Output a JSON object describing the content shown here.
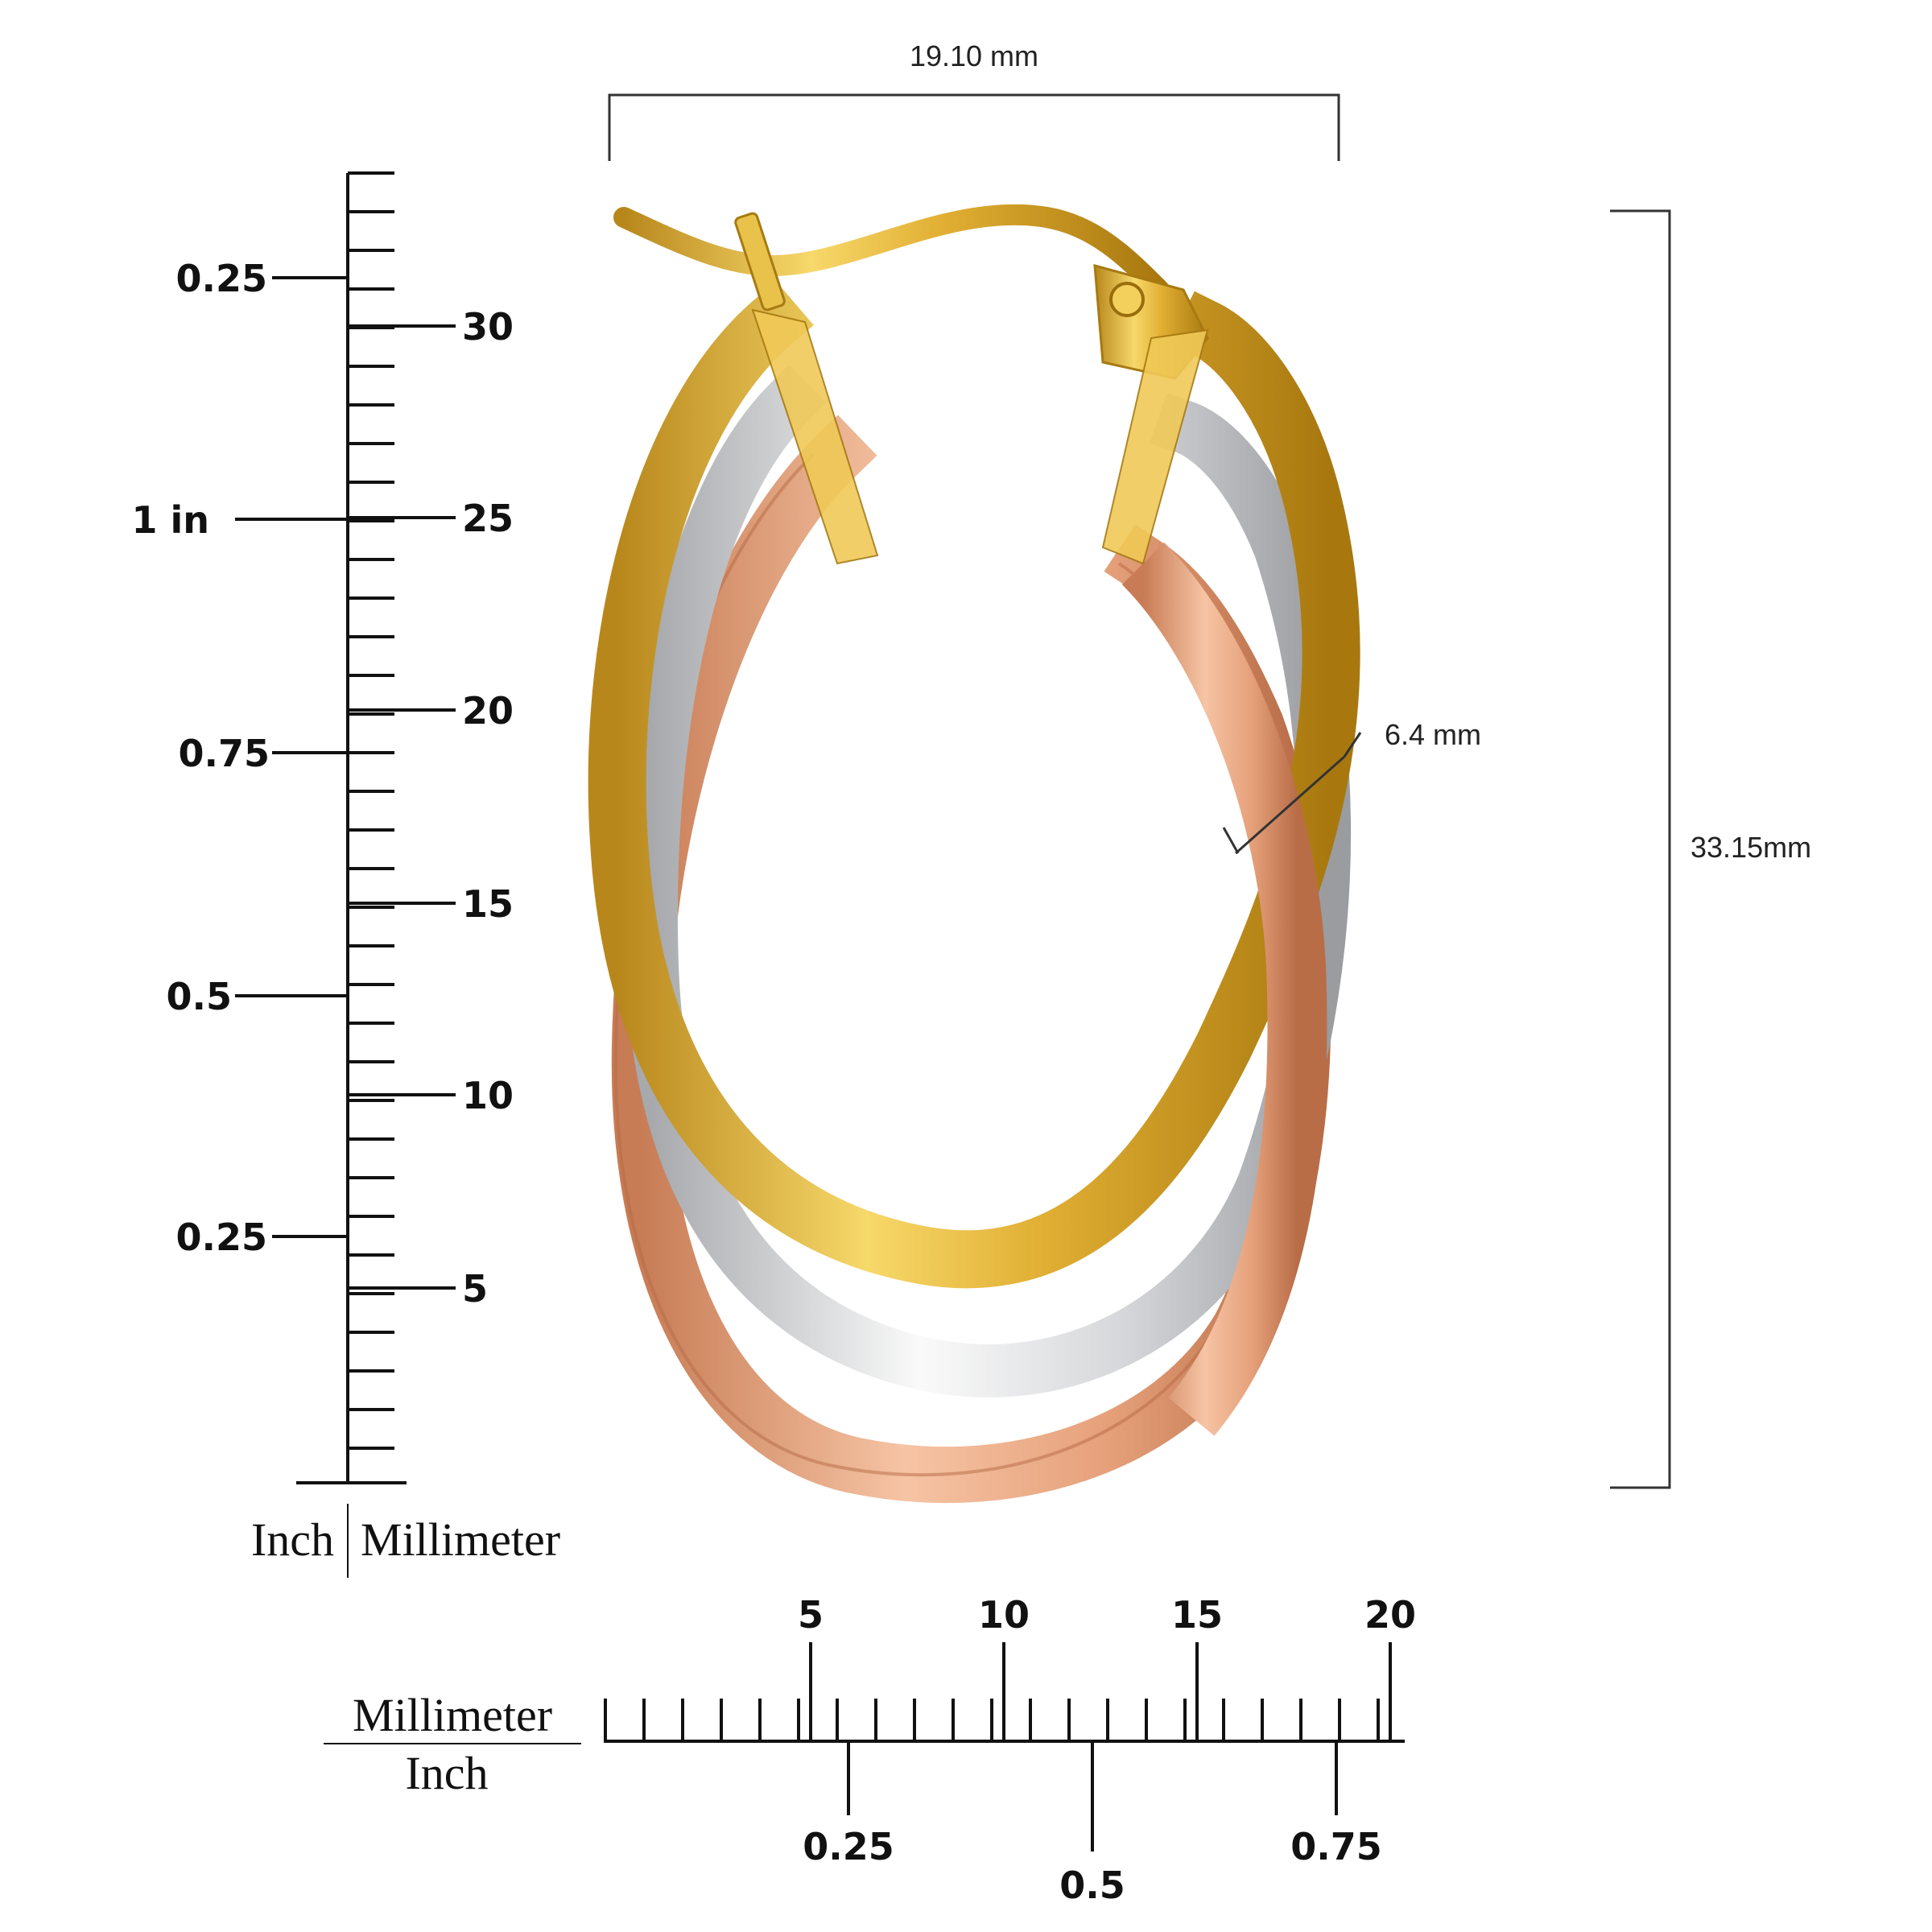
{
  "dimensions": {
    "width": "19.10 mm",
    "height": "33.15mm",
    "band_width": "6.4  mm"
  },
  "vertical_ruler": {
    "inch_labels": [
      "0.25",
      "1 in",
      "0.75",
      "0.5",
      "0.25"
    ],
    "mm_labels": [
      "30",
      "25",
      "20",
      "15",
      "10",
      "5"
    ],
    "unit_inch": "Inch",
    "unit_mm": "Millimeter"
  },
  "horizontal_ruler": {
    "mm_labels": [
      "5",
      "10",
      "15",
      "20"
    ],
    "inch_labels": [
      "0.25",
      "0.5",
      "0.75"
    ],
    "unit_mm": "Millimeter",
    "unit_inch": "Inch"
  },
  "colors": {
    "yellow_gold": "#e2b53a",
    "white_gold": "#d9dadc",
    "rose_gold": "#e8a47f",
    "ink": "#111111"
  }
}
